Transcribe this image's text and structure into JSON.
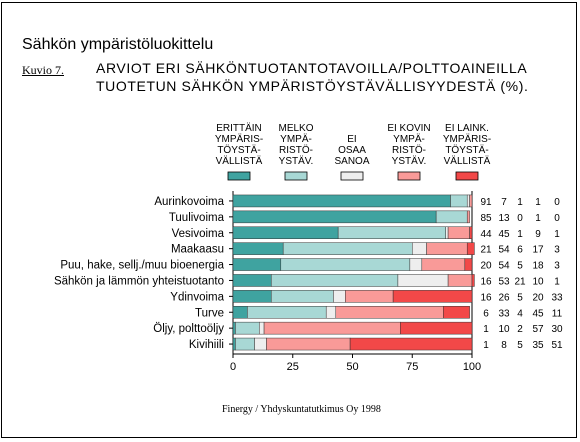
{
  "title": "Sähkön ympäristöluokittelu",
  "figure_label": "Kuvio 7.",
  "subtitle_line1": "ARVIOT ERI SÄHKÖNTUOTANTOTAVOILLA/POLTTOAINEILLA",
  "subtitle_line2": "TUOTETUN SÄHKÖN YMPÄRISTÖYSTÄVÄLLISYYDESTÄ (%).",
  "source": "Finergy / Yhdyskuntatutkimus Oy 1998",
  "chart_data": {
    "type": "bar",
    "orientation": "horizontal",
    "stacked": true,
    "xlim": [
      0,
      100
    ],
    "xticks": [
      "0",
      "25",
      "50",
      "75",
      "100"
    ],
    "grid": false,
    "legend_position": "top",
    "categories": [
      "Aurinkovoima",
      "Tuulivoima",
      "Vesivoima",
      "Maakaasu",
      "Puu, hake, sellj./muu bioenergia",
      "Sähkön ja lämmön yhteistuotanto",
      "Ydinvoima",
      "Turve",
      "Öljy, polttoöljy",
      "Kivihiili"
    ],
    "series": [
      {
        "name": [
          "ERITTÄIN",
          "YMPÄRIS-",
          "TÖYSTÄ-",
          "VÄLLISTÄ"
        ],
        "color": "#3fa3a0",
        "values": [
          91,
          85,
          44,
          21,
          20,
          16,
          16,
          6,
          1,
          1
        ]
      },
      {
        "name": [
          "MELKO",
          "YMPÄ-",
          "RISTÖ-",
          "YSTÄV."
        ],
        "color": "#a8d8d5",
        "values": [
          7,
          13,
          45,
          54,
          54,
          53,
          26,
          33,
          10,
          8
        ]
      },
      {
        "name": [
          "EI",
          "OSAA",
          "SANOA"
        ],
        "color": "#eeeeee",
        "values": [
          1,
          0,
          1,
          6,
          5,
          21,
          5,
          4,
          2,
          5
        ]
      },
      {
        "name": [
          "EI KOVIN",
          "YMPÄ-",
          "RISTÖ-",
          "YSTÄV."
        ],
        "color": "#f99a98",
        "values": [
          1,
          1,
          9,
          17,
          18,
          10,
          20,
          45,
          57,
          35
        ]
      },
      {
        "name": [
          "EI LAINK.",
          "YMPÄRIS-",
          "TÖYSTÄ-",
          "VÄLLISTÄ"
        ],
        "color": "#f24848",
        "values": [
          0,
          0,
          1,
          3,
          3,
          1,
          33,
          11,
          30,
          51
        ]
      }
    ]
  }
}
